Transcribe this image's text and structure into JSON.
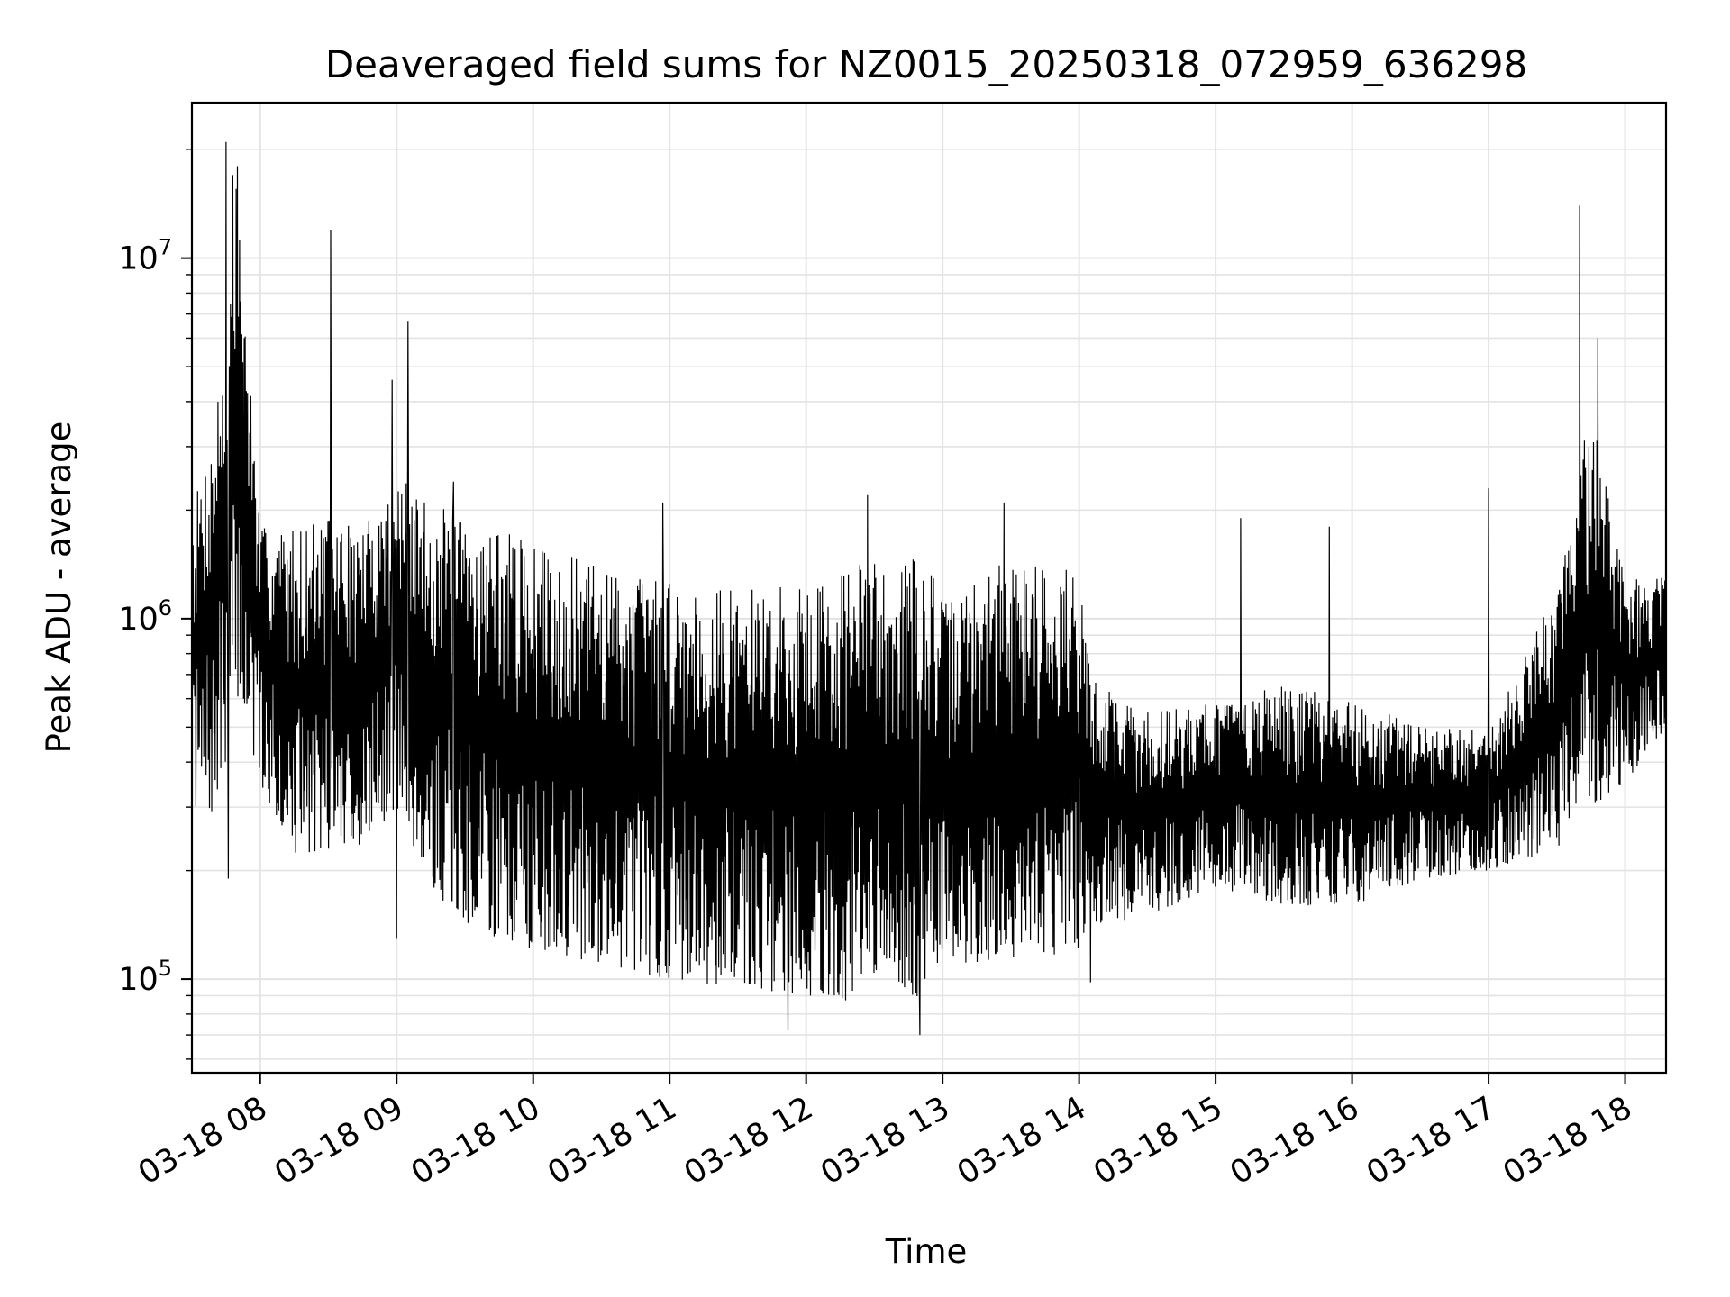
{
  "chart_data": {
    "type": "line",
    "title": "Deaveraged field sums for NZ0015_20250318_072959_636298",
    "xlabel": "Time",
    "ylabel": "Peak ADU - average",
    "yscale": "log",
    "ylim": [
      55000,
      27000000
    ],
    "xlim": [
      "2025-03-18 07:30",
      "2025-03-18 18:18"
    ],
    "grid": true,
    "line_color": "#000000",
    "x_ticks": [
      {
        "t": "2025-03-18 08:00",
        "label": "03-18 08"
      },
      {
        "t": "2025-03-18 09:00",
        "label": "03-18 09"
      },
      {
        "t": "2025-03-18 10:00",
        "label": "03-18 10"
      },
      {
        "t": "2025-03-18 11:00",
        "label": "03-18 11"
      },
      {
        "t": "2025-03-18 12:00",
        "label": "03-18 12"
      },
      {
        "t": "2025-03-18 13:00",
        "label": "03-18 13"
      },
      {
        "t": "2025-03-18 14:00",
        "label": "03-18 14"
      },
      {
        "t": "2025-03-18 15:00",
        "label": "03-18 15"
      },
      {
        "t": "2025-03-18 16:00",
        "label": "03-18 16"
      },
      {
        "t": "2025-03-18 17:00",
        "label": "03-18 17"
      },
      {
        "t": "2025-03-18 18:00",
        "label": "03-18 18"
      }
    ],
    "y_ticks": [
      {
        "value": 100000,
        "base": "10",
        "exp": "5"
      },
      {
        "value": 1000000,
        "base": "10",
        "exp": "6"
      },
      {
        "value": 10000000,
        "base": "10",
        "exp": "7"
      }
    ],
    "envelope": [
      {
        "t": "2025-03-18 07:30",
        "low": 300000,
        "high": 2000000
      },
      {
        "t": "2025-03-18 07:40",
        "low": 280000,
        "high": 3500000
      },
      {
        "t": "2025-03-18 07:50",
        "low": 600000,
        "high": 18000000
      },
      {
        "t": "2025-03-18 08:00",
        "low": 350000,
        "high": 1800000
      },
      {
        "t": "2025-03-18 08:15",
        "low": 220000,
        "high": 1800000
      },
      {
        "t": "2025-03-18 08:30",
        "low": 230000,
        "high": 1900000
      },
      {
        "t": "2025-03-18 08:45",
        "low": 230000,
        "high": 1800000
      },
      {
        "t": "2025-03-18 09:00",
        "low": 300000,
        "high": 2500000
      },
      {
        "t": "2025-03-18 09:15",
        "low": 180000,
        "high": 2100000
      },
      {
        "t": "2025-03-18 09:30",
        "low": 140000,
        "high": 1900000
      },
      {
        "t": "2025-03-18 09:45",
        "low": 130000,
        "high": 1800000
      },
      {
        "t": "2025-03-18 10:00",
        "low": 120000,
        "high": 1600000
      },
      {
        "t": "2025-03-18 10:30",
        "low": 110000,
        "high": 1400000
      },
      {
        "t": "2025-03-18 11:00",
        "low": 100000,
        "high": 1300000
      },
      {
        "t": "2025-03-18 11:30",
        "low": 95000,
        "high": 1200000
      },
      {
        "t": "2025-03-18 12:00",
        "low": 90000,
        "high": 1250000
      },
      {
        "t": "2025-03-18 12:30",
        "low": 85000,
        "high": 1500000
      },
      {
        "t": "2025-03-18 12:55",
        "low": 90000,
        "high": 1500000
      },
      {
        "t": "2025-03-18 13:00",
        "low": 110000,
        "high": 1100000
      },
      {
        "t": "2025-03-18 13:30",
        "low": 110000,
        "high": 1500000
      },
      {
        "t": "2025-03-18 14:00",
        "low": 120000,
        "high": 1400000
      },
      {
        "t": "2025-03-18 14:05",
        "low": 140000,
        "high": 700000
      },
      {
        "t": "2025-03-18 14:30",
        "low": 150000,
        "high": 550000
      },
      {
        "t": "2025-03-18 15:00",
        "low": 180000,
        "high": 600000
      },
      {
        "t": "2025-03-18 15:30",
        "low": 160000,
        "high": 650000
      },
      {
        "t": "2025-03-18 16:00",
        "low": 160000,
        "high": 600000
      },
      {
        "t": "2025-03-18 16:30",
        "low": 190000,
        "high": 500000
      },
      {
        "t": "2025-03-18 17:00",
        "low": 200000,
        "high": 500000
      },
      {
        "t": "2025-03-18 17:30",
        "low": 230000,
        "high": 1200000
      },
      {
        "t": "2025-03-18 17:45",
        "low": 300000,
        "high": 4000000
      },
      {
        "t": "2025-03-18 18:00",
        "low": 350000,
        "high": 1300000
      },
      {
        "t": "2025-03-18 18:18",
        "low": 500000,
        "high": 1300000
      }
    ],
    "spikes": [
      {
        "t": "2025-03-18 07:45",
        "value": 21000000
      },
      {
        "t": "2025-03-18 07:48",
        "value": 17000000
      },
      {
        "t": "2025-03-18 07:50",
        "value": 18000000
      },
      {
        "t": "2025-03-18 07:53",
        "value": 6000000
      },
      {
        "t": "2025-03-18 08:31",
        "value": 12000000
      },
      {
        "t": "2025-03-18 08:58",
        "value": 4600000
      },
      {
        "t": "2025-03-18 09:05",
        "value": 6700000
      },
      {
        "t": "2025-03-18 09:25",
        "value": 2400000
      },
      {
        "t": "2025-03-18 10:57",
        "value": 2100000
      },
      {
        "t": "2025-03-18 12:27",
        "value": 2200000
      },
      {
        "t": "2025-03-18 13:27",
        "value": 2100000
      },
      {
        "t": "2025-03-18 15:11",
        "value": 1900000
      },
      {
        "t": "2025-03-18 15:50",
        "value": 1800000
      },
      {
        "t": "2025-03-18 17:00",
        "value": 2300000
      },
      {
        "t": "2025-03-18 17:40",
        "value": 14000000
      },
      {
        "t": "2025-03-18 17:48",
        "value": 6000000
      }
    ],
    "dips": [
      {
        "t": "2025-03-18 07:46",
        "value": 190000
      },
      {
        "t": "2025-03-18 09:00",
        "value": 130000
      },
      {
        "t": "2025-03-18 11:52",
        "value": 72000
      },
      {
        "t": "2025-03-18 12:50",
        "value": 70000
      },
      {
        "t": "2025-03-18 14:05",
        "value": 98000
      }
    ]
  }
}
